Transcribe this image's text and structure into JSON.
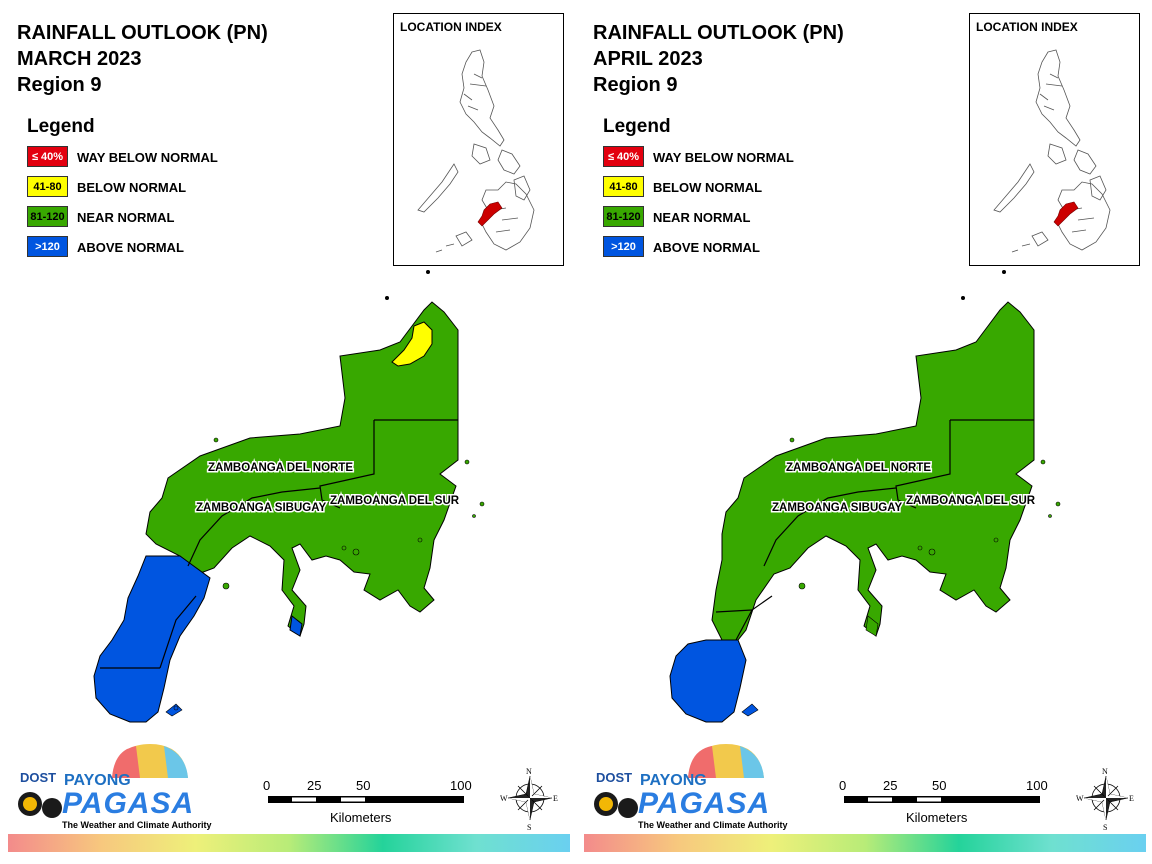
{
  "panels": [
    {
      "title_line1": "RAINFALL OUTLOOK (PN)",
      "title_line2": "MARCH 2023",
      "title_line3": "Region 9"
    },
    {
      "title_line1": "RAINFALL OUTLOOK (PN)",
      "title_line2": "APRIL 2023",
      "title_line3": "Region 9"
    }
  ],
  "legend": {
    "heading": "Legend",
    "items": [
      {
        "swatch": "≤ 40%",
        "label": "WAY BELOW NORMAL",
        "color": "#e3000f",
        "text_color": "#ffffff"
      },
      {
        "swatch": "41-80",
        "label": "BELOW NORMAL",
        "color": "#ffff00",
        "text_color": "#000000"
      },
      {
        "swatch": "81-120",
        "label": "NEAR NORMAL",
        "color": "#38a800",
        "text_color": "#000000"
      },
      {
        "swatch": ">120",
        "label": "ABOVE NORMAL",
        "color": "#0055e0",
        "text_color": "#ffffff"
      }
    ]
  },
  "location_index": {
    "title": "LOCATION INDEX",
    "highlight_color": "#cc0000"
  },
  "map": {
    "provinces": {
      "norte": "ZAMBOANGA DEL NORTE",
      "sibugay": "ZAMBOANGA SIBUGAY",
      "sur": "ZAMBOANGA DEL SUR"
    },
    "colors": {
      "near_normal": "#38a800",
      "below_normal": "#ffff00",
      "above_normal": "#0055e0"
    }
  },
  "scale": {
    "ticks": [
      "0",
      "25",
      "50",
      "100"
    ],
    "unit": "Kilometers"
  },
  "compass": {
    "n": "N",
    "s": "S",
    "e": "E",
    "w": "W"
  },
  "logo": {
    "dost": "DOST",
    "payong": "PAYONG",
    "pagasa": "PAGASA",
    "tagline": "The Weather and Climate Authority"
  }
}
